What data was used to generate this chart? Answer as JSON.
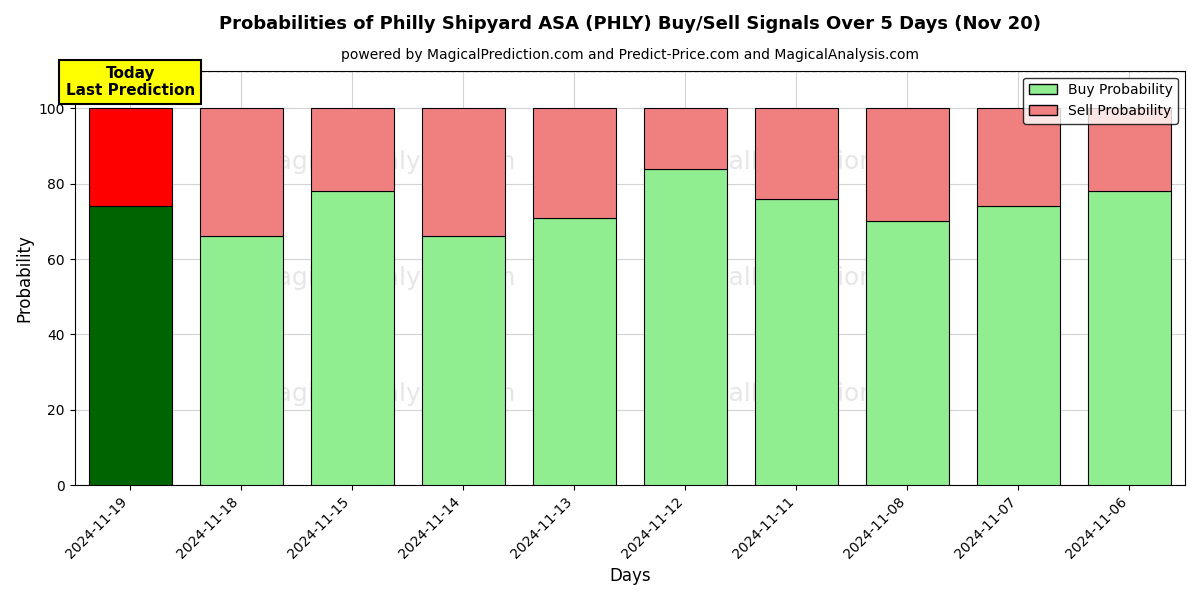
{
  "title": "Probabilities of Philly Shipyard ASA (PHLY) Buy/Sell Signals Over 5 Days (Nov 20)",
  "subtitle": "powered by MagicalPrediction.com and Predict-Price.com and MagicalAnalysis.com",
  "xlabel": "Days",
  "ylabel": "Probability",
  "dates": [
    "2024-11-19",
    "2024-11-18",
    "2024-11-15",
    "2024-11-14",
    "2024-11-13",
    "2024-11-12",
    "2024-11-11",
    "2024-11-08",
    "2024-11-07",
    "2024-11-06"
  ],
  "buy_values": [
    74,
    66,
    78,
    66,
    71,
    84,
    76,
    70,
    74,
    78
  ],
  "sell_values": [
    26,
    34,
    22,
    34,
    29,
    16,
    24,
    30,
    26,
    22
  ],
  "today_buy_color": "#006400",
  "today_sell_color": "#FF0000",
  "normal_buy_color": "#90EE90",
  "normal_sell_color": "#F08080",
  "bar_edge_color": "#000000",
  "today_annotation_bg": "#FFFF00",
  "today_annotation_text": "Today\nLast Prediction",
  "ylim": [
    0,
    110
  ],
  "yticks": [
    0,
    20,
    40,
    60,
    80,
    100
  ],
  "dashed_line_y": 110,
  "legend_buy_label": "Buy Probability",
  "legend_sell_label": "Sell Probability",
  "figsize": [
    12,
    6
  ],
  "dpi": 100
}
